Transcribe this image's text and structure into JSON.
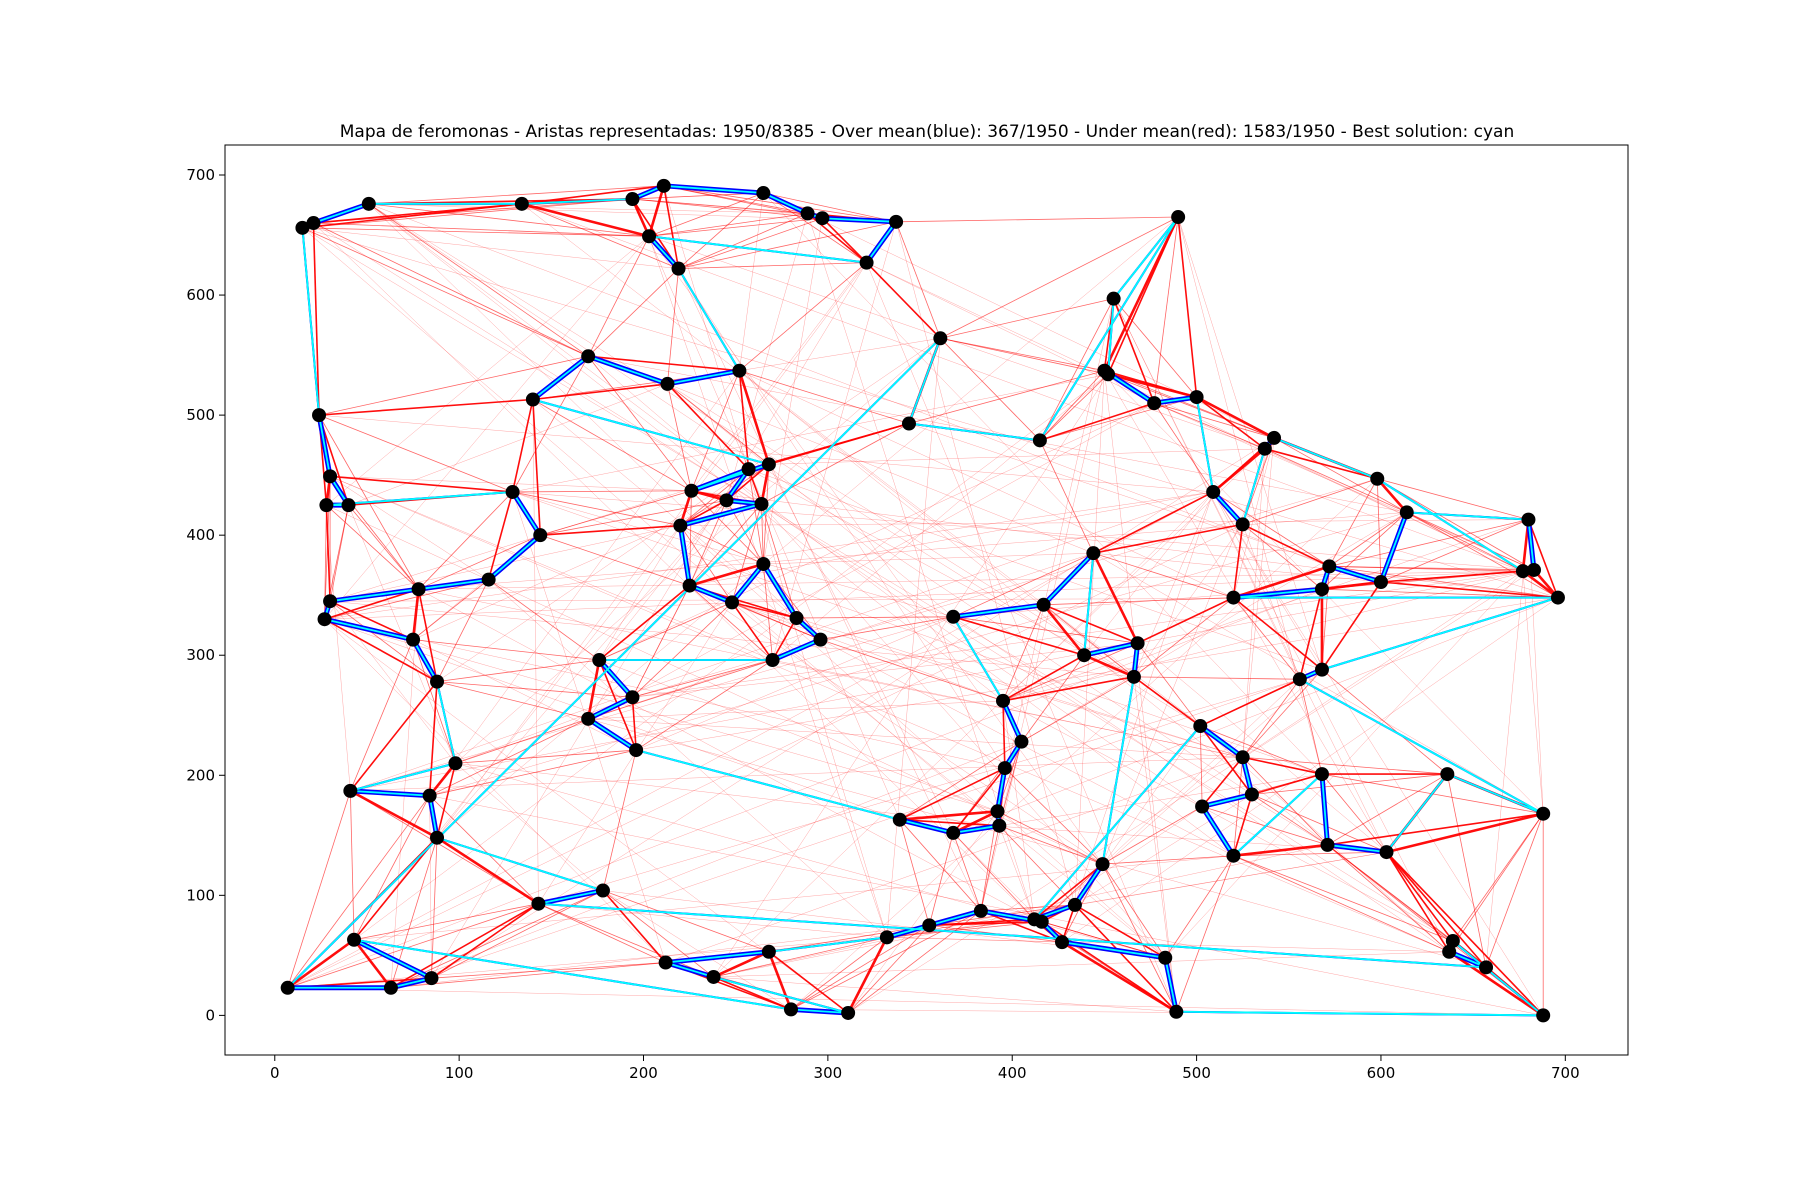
{
  "chart_data": {
    "type": "scatter",
    "title": "Mapa de feromonas - Aristas representadas: 1950/8385 - Over mean(blue): 367/1950 - Under mean(red): 1583/1950 - Best solution: cyan",
    "xlabel": "",
    "ylabel": "",
    "xlim": [
      -27,
      734
    ],
    "ylim": [
      -33,
      725
    ],
    "xticks": [
      0,
      100,
      200,
      300,
      400,
      500,
      600,
      700
    ],
    "yticks": [
      0,
      100,
      200,
      300,
      400,
      500,
      600,
      700
    ],
    "grid": false,
    "colors": {
      "node": "#000000",
      "over_mean": "#0000ff",
      "under_mean": "#ff0000",
      "best_solution": "#00ffff"
    },
    "series": [
      {
        "name": "nodes",
        "points": [
          [
            7,
            23
          ],
          [
            63,
            23
          ],
          [
            85,
            31
          ],
          [
            43,
            63
          ],
          [
            280,
            5
          ],
          [
            311,
            2
          ],
          [
            238,
            32
          ],
          [
            212,
            44
          ],
          [
            268,
            53
          ],
          [
            332,
            65
          ],
          [
            355,
            75
          ],
          [
            383,
            87
          ],
          [
            416,
            78
          ],
          [
            427,
            61
          ],
          [
            483,
            48
          ],
          [
            489,
            3
          ],
          [
            688,
            0
          ],
          [
            639,
            62
          ],
          [
            637,
            53
          ],
          [
            657,
            40
          ],
          [
            143,
            93
          ],
          [
            178,
            104
          ],
          [
            88,
            148
          ],
          [
            84,
            183
          ],
          [
            41,
            187
          ],
          [
            98,
            210
          ],
          [
            88,
            278
          ],
          [
            75,
            313
          ],
          [
            27,
            330
          ],
          [
            30,
            345
          ],
          [
            78,
            355
          ],
          [
            116,
            363
          ],
          [
            144,
            400
          ],
          [
            129,
            436
          ],
          [
            28,
            425
          ],
          [
            40,
            425
          ],
          [
            30,
            449
          ],
          [
            24,
            500
          ],
          [
            15,
            656
          ],
          [
            21,
            660
          ],
          [
            51,
            676
          ],
          [
            134,
            676
          ],
          [
            194,
            680
          ],
          [
            211,
            691
          ],
          [
            265,
            685
          ],
          [
            289,
            668
          ],
          [
            297,
            664
          ],
          [
            337,
            661
          ],
          [
            321,
            627
          ],
          [
            203,
            649
          ],
          [
            219,
            622
          ],
          [
            252,
            537
          ],
          [
            213,
            526
          ],
          [
            170,
            549
          ],
          [
            140,
            513
          ],
          [
            268,
            459
          ],
          [
            226,
            437
          ],
          [
            257,
            455
          ],
          [
            245,
            429
          ],
          [
            264,
            426
          ],
          [
            220,
            408
          ],
          [
            225,
            358
          ],
          [
            248,
            344
          ],
          [
            265,
            376
          ],
          [
            283,
            331
          ],
          [
            296,
            313
          ],
          [
            270,
            296
          ],
          [
            176,
            296
          ],
          [
            194,
            265
          ],
          [
            170,
            247
          ],
          [
            196,
            221
          ],
          [
            339,
            163
          ],
          [
            368,
            152
          ],
          [
            393,
            158
          ],
          [
            392,
            170
          ],
          [
            396,
            206
          ],
          [
            405,
            228
          ],
          [
            395,
            262
          ],
          [
            368,
            332
          ],
          [
            417,
            342
          ],
          [
            444,
            385
          ],
          [
            439,
            300
          ],
          [
            468,
            310
          ],
          [
            466,
            282
          ],
          [
            449,
            126
          ],
          [
            434,
            92
          ],
          [
            412,
            80
          ],
          [
            502,
            241
          ],
          [
            525,
            215
          ],
          [
            530,
            184
          ],
          [
            503,
            174
          ],
          [
            520,
            133
          ],
          [
            568,
            201
          ],
          [
            571,
            142
          ],
          [
            603,
            136
          ],
          [
            636,
            201
          ],
          [
            688,
            168
          ],
          [
            556,
            280
          ],
          [
            568,
            288
          ],
          [
            696,
            348
          ],
          [
            520,
            348
          ],
          [
            568,
            355
          ],
          [
            572,
            374
          ],
          [
            600,
            361
          ],
          [
            614,
            419
          ],
          [
            680,
            413
          ],
          [
            683,
            371
          ],
          [
            677,
            370
          ],
          [
            598,
            447
          ],
          [
            542,
            481
          ],
          [
            537,
            472
          ],
          [
            525,
            409
          ],
          [
            509,
            436
          ],
          [
            500,
            515
          ],
          [
            477,
            510
          ],
          [
            450,
            537
          ],
          [
            452,
            534
          ],
          [
            455,
            597
          ],
          [
            490,
            665
          ],
          [
            415,
            479
          ],
          [
            344,
            493
          ],
          [
            361,
            564
          ]
        ]
      }
    ]
  }
}
